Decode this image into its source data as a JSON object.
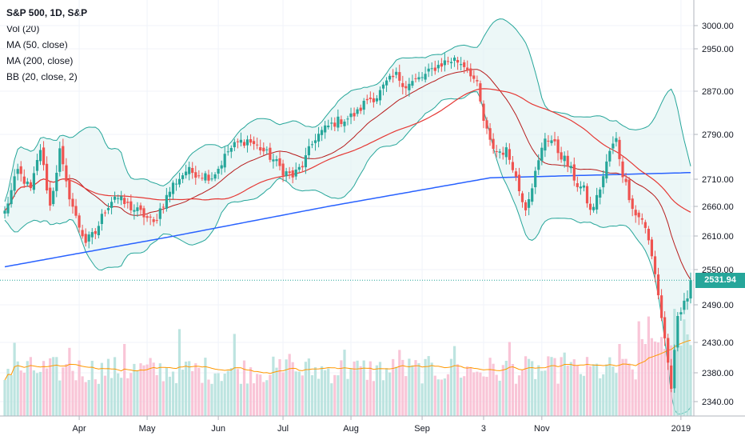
{
  "legend": {
    "title": "S&P 500, 1D, S&P",
    "vol": "Vol (20)",
    "ma50": "MA (50, close)",
    "ma200": "MA (200, close)",
    "bb": "BB (20, close, 2)"
  },
  "last_price": {
    "label": "2531.94",
    "color": "#26a69a"
  },
  "colors": {
    "up": "#26a69a",
    "down": "#ef5350",
    "vol_up": "#b2dfdb",
    "vol_down": "#f8bbd0",
    "vol_ma": "#ff9800",
    "ma50": "#e53935",
    "ma200": "#2962ff",
    "bb_line": "#26a69a",
    "bb_mid": "#b71c1c",
    "bb_fill": "#e0f2f1",
    "grid": "#f0f3fa",
    "axis_text": "#131722"
  },
  "chart_data": {
    "type": "candlestick",
    "title": "S&P 500, 1D, S&P",
    "y_ticks": [
      3000,
      2950,
      2870,
      2790,
      2710,
      2660,
      2610,
      2550,
      2490,
      2430,
      2380,
      2340
    ],
    "y_tick_labels": [
      "3000.00",
      "2950.00",
      "2870.00",
      "2790.00",
      "2710.00",
      "2660.00",
      "2610.00",
      "2550.00",
      "2490.00",
      "2430.00",
      "2380.00",
      "2340.00"
    ],
    "x_ticks": [
      {
        "label": "Apr",
        "index": 23
      },
      {
        "label": "May",
        "index": 44
      },
      {
        "label": "Jun",
        "index": 66
      },
      {
        "label": "Jul",
        "index": 86
      },
      {
        "label": "Aug",
        "index": 107
      },
      {
        "label": "Sep",
        "index": 129
      },
      {
        "label": "3",
        "index": 148
      },
      {
        "label": "Nov",
        "index": 166
      },
      {
        "label": "2019",
        "index": 209
      }
    ],
    "n_bars": 213,
    "anchors": [
      {
        "i": 0,
        "p": 2650
      },
      {
        "i": 4,
        "p": 2725
      },
      {
        "i": 8,
        "p": 2690
      },
      {
        "i": 11,
        "p": 2765
      },
      {
        "i": 14,
        "p": 2660
      },
      {
        "i": 17,
        "p": 2760
      },
      {
        "i": 19,
        "p": 2700
      },
      {
        "i": 22,
        "p": 2640
      },
      {
        "i": 25,
        "p": 2600
      },
      {
        "i": 28,
        "p": 2615
      },
      {
        "i": 31,
        "p": 2655
      },
      {
        "i": 34,
        "p": 2680
      },
      {
        "i": 37,
        "p": 2665
      },
      {
        "i": 40,
        "p": 2655
      },
      {
        "i": 43,
        "p": 2645
      },
      {
        "i": 46,
        "p": 2630
      },
      {
        "i": 48,
        "p": 2655
      },
      {
        "i": 52,
        "p": 2700
      },
      {
        "i": 56,
        "p": 2725
      },
      {
        "i": 60,
        "p": 2720
      },
      {
        "i": 64,
        "p": 2715
      },
      {
        "i": 66,
        "p": 2730
      },
      {
        "i": 69,
        "p": 2760
      },
      {
        "i": 72,
        "p": 2775
      },
      {
        "i": 75,
        "p": 2780
      },
      {
        "i": 79,
        "p": 2765
      },
      {
        "i": 83,
        "p": 2745
      },
      {
        "i": 86,
        "p": 2725
      },
      {
        "i": 89,
        "p": 2715
      },
      {
        "i": 92,
        "p": 2735
      },
      {
        "i": 96,
        "p": 2785
      },
      {
        "i": 100,
        "p": 2805
      },
      {
        "i": 103,
        "p": 2815
      },
      {
        "i": 106,
        "p": 2820
      },
      {
        "i": 109,
        "p": 2830
      },
      {
        "i": 112,
        "p": 2855
      },
      {
        "i": 115,
        "p": 2860
      },
      {
        "i": 118,
        "p": 2885
      },
      {
        "i": 121,
        "p": 2900
      },
      {
        "i": 124,
        "p": 2880
      },
      {
        "i": 127,
        "p": 2890
      },
      {
        "i": 130,
        "p": 2900
      },
      {
        "i": 133,
        "p": 2915
      },
      {
        "i": 136,
        "p": 2925
      },
      {
        "i": 139,
        "p": 2930
      },
      {
        "i": 142,
        "p": 2920
      },
      {
        "i": 144,
        "p": 2905
      },
      {
        "i": 146,
        "p": 2880
      },
      {
        "i": 148,
        "p": 2815
      },
      {
        "i": 150,
        "p": 2775
      },
      {
        "i": 152,
        "p": 2760
      },
      {
        "i": 155,
        "p": 2760
      },
      {
        "i": 157,
        "p": 2735
      },
      {
        "i": 159,
        "p": 2690
      },
      {
        "i": 161,
        "p": 2660
      },
      {
        "i": 163,
        "p": 2700
      },
      {
        "i": 165,
        "p": 2740
      },
      {
        "i": 167,
        "p": 2785
      },
      {
        "i": 169,
        "p": 2780
      },
      {
        "i": 171,
        "p": 2760
      },
      {
        "i": 173,
        "p": 2745
      },
      {
        "i": 175,
        "p": 2725
      },
      {
        "i": 177,
        "p": 2700
      },
      {
        "i": 179,
        "p": 2690
      },
      {
        "i": 181,
        "p": 2650
      },
      {
        "i": 183,
        "p": 2675
      },
      {
        "i": 185,
        "p": 2715
      },
      {
        "i": 187,
        "p": 2760
      },
      {
        "i": 189,
        "p": 2780
      },
      {
        "i": 191,
        "p": 2720
      },
      {
        "i": 193,
        "p": 2680
      },
      {
        "i": 195,
        "p": 2645
      },
      {
        "i": 197,
        "p": 2640
      },
      {
        "i": 199,
        "p": 2600
      },
      {
        "i": 201,
        "p": 2545
      },
      {
        "i": 203,
        "p": 2470
      },
      {
        "i": 205,
        "p": 2400
      },
      {
        "i": 206,
        "p": 2350
      },
      {
        "i": 208,
        "p": 2470
      },
      {
        "i": 210,
        "p": 2490
      },
      {
        "i": 211,
        "p": 2505
      },
      {
        "i": 212,
        "p": 2531.94
      }
    ]
  }
}
